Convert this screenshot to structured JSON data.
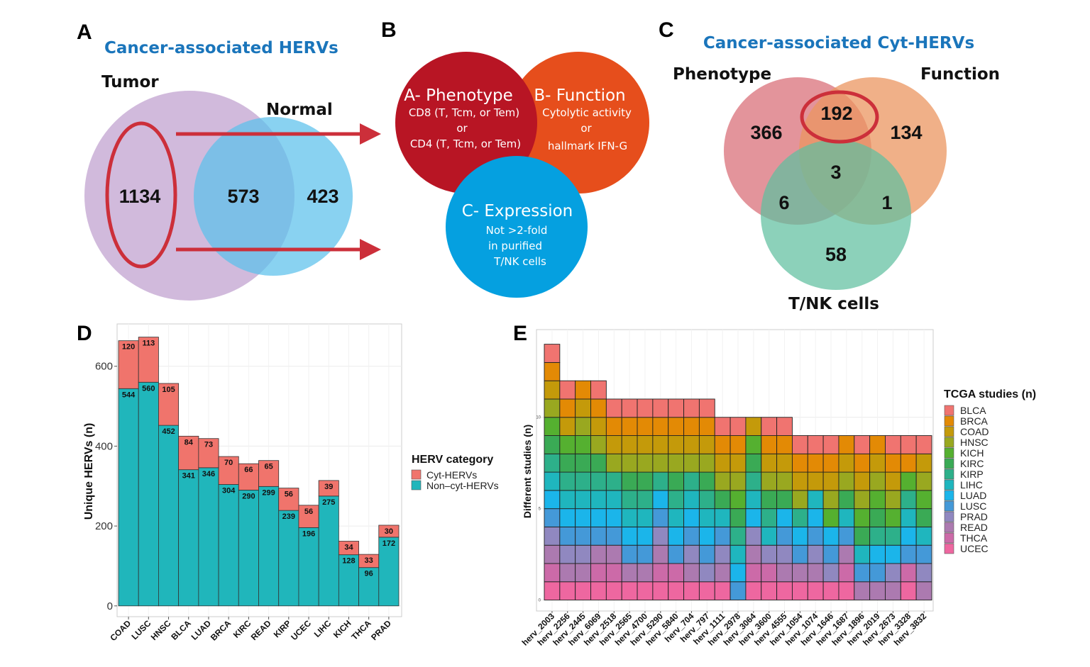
{
  "panel_a": {
    "letter": "A",
    "title": "Cancer-associated HERVs",
    "set_tumor": "Tumor",
    "set_normal": "Normal",
    "tumor_only": "1134",
    "overlap": "573",
    "normal_only": "423",
    "colors": {
      "tumor": "#c9aed6",
      "normal": "#5bc0eb",
      "highlight": "#cc2f3a"
    }
  },
  "panel_b": {
    "letter": "B",
    "phenotype": {
      "heading": "A- Phenotype",
      "lines": [
        "CD8 (T, Tcm, or Tem)",
        "or",
        "CD4 (T, Tcm, or Tem)"
      ]
    },
    "function": {
      "heading": "B- Function",
      "lines": [
        "Cytolytic activity",
        "or",
        "hallmark IFN-G"
      ]
    },
    "expression": {
      "heading": "C- Expression",
      "lines": [
        "Not >2-fold",
        "in purified",
        "T/NK cells"
      ]
    },
    "colors": {
      "phenotype": "#b81524",
      "function": "#e64e1c",
      "expression": "#05a0e0"
    }
  },
  "panel_c": {
    "letter": "C",
    "title": "Cancer-associated Cyt-HERVs",
    "set_phenotype": "Phenotype",
    "set_function": "Function",
    "set_tnk": "T/NK cells",
    "phenotype_only": "366",
    "phenotype_function": "192",
    "function_only": "134",
    "all_three": "3",
    "phenotype_tnk": "6",
    "function_tnk": "1",
    "tnk_only": "58",
    "colors": {
      "phenotype": "#d9707a",
      "function": "#eb9560",
      "tnk": "#5fbf9f"
    }
  },
  "chart_data": [
    {
      "panel": "D",
      "type": "bar",
      "stacked": true,
      "categories": [
        "COAD",
        "LUSC",
        "HNSC",
        "BLCA",
        "LUAD",
        "BRCA",
        "KIRC",
        "READ",
        "KIRP",
        "UCEC",
        "LIHC",
        "KICH",
        "THCA",
        "PRAD"
      ],
      "series": [
        {
          "name": "Non–cyt-HERVs",
          "color": "#20b6bb",
          "values": [
            544,
            560,
            452,
            341,
            346,
            304,
            290,
            299,
            239,
            196,
            275,
            128,
            96,
            172
          ]
        },
        {
          "name": "Cyt-HERVs",
          "color": "#f0746c",
          "values": [
            120,
            113,
            105,
            84,
            73,
            70,
            66,
            65,
            56,
            56,
            39,
            34,
            33,
            30
          ]
        }
      ],
      "ylabel": "Unique HERVs (n)",
      "yticks": [
        0,
        200,
        400,
        600
      ],
      "ylim": [
        -27,
        706
      ],
      "grid": true,
      "legend": {
        "title": "HERV category",
        "position": "right",
        "entries": [
          "Cyt-HERVs",
          "Non–cyt-HERVs"
        ]
      }
    },
    {
      "panel": "E",
      "type": "bar",
      "stacked": true,
      "ylabel": "Different studies (n)",
      "yticks": [
        0,
        5,
        10
      ],
      "ylim": [
        -0.6,
        14.8
      ],
      "grid": true,
      "legend": {
        "title": "TCGA studies (n)",
        "position": "right"
      },
      "studies": [
        "BLCA",
        "BRCA",
        "COAD",
        "HNSC",
        "KICH",
        "KIRC",
        "KIRP",
        "LIHC",
        "LUAD",
        "LUSC",
        "PRAD",
        "READ",
        "THCA",
        "UCEC"
      ],
      "study_colors": {
        "BLCA": "#f07470",
        "BRCA": "#e38a05",
        "COAD": "#c49a0a",
        "HNSC": "#99a820",
        "KICH": "#55b030",
        "KIRC": "#3aaa55",
        "KIRP": "#2db08a",
        "LIHC": "#1fb6be",
        "LUAD": "#1bb5ea",
        "LUSC": "#4499d8",
        "PRAD": "#9088c0",
        "READ": "#ac7ab0",
        "THCA": "#cc6aa8",
        "UCEC": "#ee67a0"
      },
      "categories": [
        "herv_2003",
        "herv_2256",
        "herv_2445",
        "herv_6069",
        "herv_2518",
        "herv_2565",
        "herv_4700",
        "herv_5290",
        "herv_5840",
        "herv_704",
        "herv_797",
        "herv_1111",
        "herv_2978",
        "herv_3064",
        "herv_3600",
        "herv_4555",
        "herv_1054",
        "herv_1074",
        "herv_1646",
        "herv_1687",
        "herv_1896",
        "herv_2019",
        "herv_2673",
        "herv_3328",
        "herv_3832"
      ],
      "values": [
        14,
        12,
        12,
        12,
        11,
        11,
        11,
        11,
        11,
        11,
        11,
        10,
        10,
        10,
        10,
        10,
        9,
        9,
        9,
        9,
        9,
        9,
        9,
        9,
        9
      ],
      "stacks": [
        [
          "UCEC",
          "THCA",
          "READ",
          "PRAD",
          "LUSC",
          "LUAD",
          "LIHC",
          "KIRP",
          "KIRC",
          "KICH",
          "HNSC",
          "COAD",
          "BRCA",
          "BLCA"
        ],
        [
          "UCEC",
          "READ",
          "PRAD",
          "LUSC",
          "LUAD",
          "LIHC",
          "KIRP",
          "KIRC",
          "KICH",
          "COAD",
          "BRCA",
          "BLCA"
        ],
        [
          "UCEC",
          "READ",
          "PRAD",
          "LUSC",
          "LUAD",
          "LIHC",
          "KIRP",
          "KIRC",
          "KICH",
          "HNSC",
          "COAD",
          "BRCA"
        ],
        [
          "UCEC",
          "THCA",
          "READ",
          "LUSC",
          "LUAD",
          "LIHC",
          "KIRP",
          "KIRC",
          "HNSC",
          "COAD",
          "BRCA",
          "BLCA"
        ],
        [
          "UCEC",
          "THCA",
          "READ",
          "LUSC",
          "LUAD",
          "LIHC",
          "KIRP",
          "HNSC",
          "COAD",
          "BRCA",
          "BLCA"
        ],
        [
          "UCEC",
          "READ",
          "LUSC",
          "LUAD",
          "LIHC",
          "KIRP",
          "KIRC",
          "HNSC",
          "COAD",
          "BRCA",
          "BLCA"
        ],
        [
          "UCEC",
          "READ",
          "LUSC",
          "LUAD",
          "LIHC",
          "KIRP",
          "KIRC",
          "HNSC",
          "COAD",
          "BRCA",
          "BLCA"
        ],
        [
          "UCEC",
          "THCA",
          "READ",
          "PRAD",
          "LUSC",
          "LUAD",
          "KIRP",
          "HNSC",
          "COAD",
          "BRCA",
          "BLCA"
        ],
        [
          "UCEC",
          "THCA",
          "LUSC",
          "LUAD",
          "LIHC",
          "KIRP",
          "KIRC",
          "HNSC",
          "COAD",
          "BRCA",
          "BLCA"
        ],
        [
          "UCEC",
          "READ",
          "PRAD",
          "LUSC",
          "LUAD",
          "LIHC",
          "KIRP",
          "HNSC",
          "COAD",
          "BRCA",
          "BLCA"
        ],
        [
          "UCEC",
          "PRAD",
          "LUSC",
          "LUAD",
          "LIHC",
          "KIRP",
          "KIRC",
          "HNSC",
          "COAD",
          "BRCA",
          "BLCA"
        ],
        [
          "UCEC",
          "READ",
          "PRAD",
          "LUSC",
          "LIHC",
          "KIRC",
          "HNSC",
          "COAD",
          "BRCA",
          "BLCA"
        ],
        [
          "LUSC",
          "LUAD",
          "LIHC",
          "KIRP",
          "KIRC",
          "KICH",
          "HNSC",
          "COAD",
          "BRCA",
          "BLCA"
        ],
        [
          "UCEC",
          "THCA",
          "READ",
          "PRAD",
          "LUAD",
          "LIHC",
          "KIRP",
          "KIRC",
          "KICH",
          "COAD"
        ],
        [
          "UCEC",
          "THCA",
          "PRAD",
          "LIHC",
          "KIRP",
          "KIRC",
          "HNSC",
          "COAD",
          "BRCA",
          "BLCA"
        ],
        [
          "UCEC",
          "READ",
          "PRAD",
          "LUSC",
          "LUAD",
          "KIRC",
          "HNSC",
          "COAD",
          "BRCA",
          "BLCA"
        ],
        [
          "UCEC",
          "READ",
          "LUSC",
          "LUAD",
          "KIRP",
          "HNSC",
          "COAD",
          "BRCA",
          "BLCA"
        ],
        [
          "UCEC",
          "READ",
          "PRAD",
          "LUSC",
          "LUAD",
          "LIHC",
          "COAD",
          "BRCA",
          "BLCA"
        ],
        [
          "UCEC",
          "PRAD",
          "LUSC",
          "LUAD",
          "KICH",
          "HNSC",
          "COAD",
          "BRCA",
          "BLCA"
        ],
        [
          "UCEC",
          "THCA",
          "READ",
          "LUSC",
          "LIHC",
          "KIRC",
          "HNSC",
          "COAD",
          "BRCA"
        ],
        [
          "READ",
          "LUSC",
          "LIHC",
          "KIRC",
          "KICH",
          "HNSC",
          "COAD",
          "BRCA",
          "BLCA"
        ],
        [
          "READ",
          "LUSC",
          "LUAD",
          "KIRP",
          "KIRC",
          "KICH",
          "HNSC",
          "COAD",
          "BRCA"
        ],
        [
          "READ",
          "PRAD",
          "LUAD",
          "KIRP",
          "KICH",
          "HNSC",
          "COAD",
          "BRCA",
          "BLCA"
        ],
        [
          "UCEC",
          "THCA",
          "LUSC",
          "LUAD",
          "LIHC",
          "KIRP",
          "KICH",
          "BRCA",
          "BLCA"
        ],
        [
          "READ",
          "PRAD",
          "LUSC",
          "LIHC",
          "KIRC",
          "KICH",
          "HNSC",
          "COAD",
          "BLCA"
        ]
      ]
    }
  ],
  "panel_d": {
    "letter": "D"
  },
  "panel_e": {
    "letter": "E"
  }
}
